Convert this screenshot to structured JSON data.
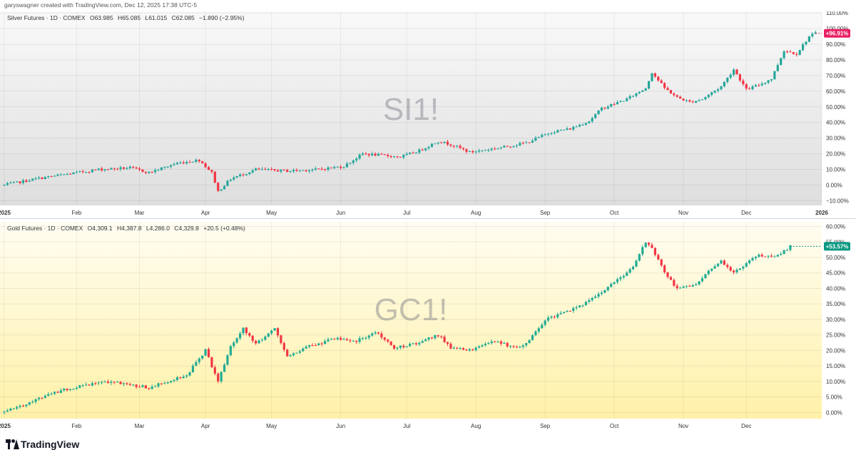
{
  "header": {
    "credit": "garyswagner created with TradingView.com, Dec 12, 2025 17:38 UTC-5"
  },
  "footer": {
    "brand": "TradingView"
  },
  "colors": {
    "up": "#26a69a",
    "up_alt": "#22ab94",
    "down": "#f23645",
    "silver_badge": "#e91e63",
    "gold_badge": "#089981"
  },
  "chart_data": [
    {
      "type": "candlestick",
      "symbol_watermark": "SI1!",
      "legend": {
        "name": "Silver Futures · 1D · COMEX",
        "open": "O63.985",
        "high": "H65.085",
        "low": "L61.015",
        "close": "C62.085",
        "change": "−1.890 (−2.95%)"
      },
      "last_value_badge": "+96.91%",
      "y_unit": "%",
      "ylim": [
        -13,
        111
      ],
      "y_ticks": [
        "110.00%",
        "100.00%",
        "90.00%",
        "80.00%",
        "70.00%",
        "60.00%",
        "50.00%",
        "40.00%",
        "30.00%",
        "20.00%",
        "10.00%",
        "0.00%",
        "−10.00%"
      ],
      "y_tick_values": [
        110,
        100,
        90,
        80,
        70,
        60,
        50,
        40,
        30,
        20,
        10,
        0,
        -10
      ],
      "x_ticks": [
        "2025",
        "Feb",
        "Mar",
        "Apr",
        "May",
        "Jun",
        "Jul",
        "Aug",
        "Sep",
        "Oct",
        "Nov",
        "Dec",
        "2026"
      ],
      "x_tick_days": [
        0,
        23,
        43,
        64,
        85,
        107,
        128,
        150,
        172,
        194,
        216,
        236,
        260
      ],
      "key_points": [
        [
          0,
          0
        ],
        [
          10,
          4
        ],
        [
          20,
          7
        ],
        [
          30,
          10
        ],
        [
          40,
          11
        ],
        [
          46,
          8
        ],
        [
          55,
          14
        ],
        [
          62,
          16
        ],
        [
          66,
          8
        ],
        [
          68,
          -4
        ],
        [
          72,
          4
        ],
        [
          80,
          10
        ],
        [
          90,
          9
        ],
        [
          100,
          10
        ],
        [
          108,
          12
        ],
        [
          114,
          20
        ],
        [
          120,
          19
        ],
        [
          126,
          18
        ],
        [
          132,
          22
        ],
        [
          138,
          28
        ],
        [
          142,
          26
        ],
        [
          148,
          21
        ],
        [
          158,
          24
        ],
        [
          166,
          27
        ],
        [
          174,
          34
        ],
        [
          180,
          36
        ],
        [
          186,
          41
        ],
        [
          190,
          49
        ],
        [
          194,
          52
        ],
        [
          198,
          55
        ],
        [
          204,
          62
        ],
        [
          206,
          72
        ],
        [
          210,
          62
        ],
        [
          214,
          56
        ],
        [
          218,
          53
        ],
        [
          222,
          55
        ],
        [
          228,
          63
        ],
        [
          232,
          74
        ],
        [
          236,
          61
        ],
        [
          240,
          64
        ],
        [
          244,
          68
        ],
        [
          248,
          86
        ],
        [
          252,
          84
        ],
        [
          256,
          95
        ],
        [
          258,
          97
        ]
      ]
    },
    {
      "type": "candlestick",
      "symbol_watermark": "GC1!",
      "legend": {
        "name": "Gold Futures · 1D · COMEX",
        "open": "O4,309.1",
        "high": "H4,387.8",
        "low": "L4,286.0",
        "close": "C4,329.8",
        "change": "+20.5 (+0.48%)"
      },
      "last_value_badge": "+53.57%",
      "y_unit": "%",
      "ylim": [
        -2,
        61.5
      ],
      "y_ticks": [
        "60.00%",
        "55.00%",
        "50.00%",
        "45.00%",
        "40.00%",
        "35.00%",
        "30.00%",
        "25.00%",
        "20.00%",
        "15.00%",
        "10.00%",
        "5.00%",
        "0.00%"
      ],
      "y_tick_values": [
        60,
        55,
        50,
        45,
        40,
        35,
        30,
        25,
        20,
        15,
        10,
        5,
        0
      ],
      "x_ticks": [
        "2025",
        "Feb",
        "Mar",
        "Apr",
        "May",
        "Jun",
        "Jul",
        "Aug",
        "Sep",
        "Oct",
        "Nov",
        "Dec"
      ],
      "x_tick_days": [
        0,
        23,
        43,
        64,
        85,
        107,
        128,
        150,
        172,
        194,
        216,
        236
      ],
      "key_points": [
        [
          0,
          0
        ],
        [
          10,
          4
        ],
        [
          18,
          7
        ],
        [
          26,
          9
        ],
        [
          34,
          10
        ],
        [
          40,
          9
        ],
        [
          46,
          8
        ],
        [
          52,
          10
        ],
        [
          58,
          12
        ],
        [
          64,
          20
        ],
        [
          68,
          10
        ],
        [
          72,
          21
        ],
        [
          76,
          27
        ],
        [
          80,
          22
        ],
        [
          86,
          27
        ],
        [
          90,
          18
        ],
        [
          96,
          21
        ],
        [
          106,
          24
        ],
        [
          112,
          23
        ],
        [
          118,
          26
        ],
        [
          124,
          21
        ],
        [
          130,
          22
        ],
        [
          138,
          25
        ],
        [
          142,
          21
        ],
        [
          148,
          20
        ],
        [
          156,
          23
        ],
        [
          162,
          21
        ],
        [
          166,
          22
        ],
        [
          172,
          30
        ],
        [
          180,
          33
        ],
        [
          188,
          37
        ],
        [
          194,
          42
        ],
        [
          200,
          47
        ],
        [
          204,
          55
        ],
        [
          206,
          53
        ],
        [
          210,
          45
        ],
        [
          214,
          40
        ],
        [
          220,
          41
        ],
        [
          224,
          46
        ],
        [
          228,
          49
        ],
        [
          232,
          45
        ],
        [
          236,
          48
        ],
        [
          240,
          51
        ],
        [
          244,
          50
        ],
        [
          248,
          52
        ],
        [
          250,
          53.6
        ]
      ]
    }
  ]
}
